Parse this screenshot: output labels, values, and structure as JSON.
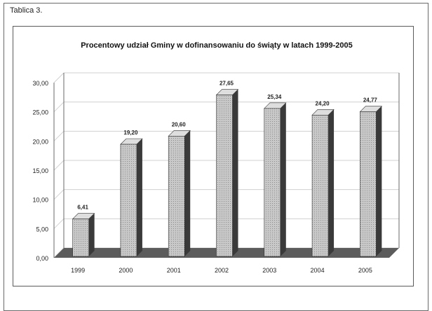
{
  "caption": "Tablica 3.",
  "colors": {
    "bar_front": "#c8c8c8",
    "bar_side": "#3a3a3a",
    "bar_top": "#dedede",
    "floor": "#5c5c5c",
    "grid": "#d0d0d0",
    "axis": "#6a6a6a"
  },
  "chart_data": {
    "type": "bar",
    "title": "Procentowy udział Gminy w dofinansowaniu do świąty w latach 1999-2005",
    "categories": [
      "1999",
      "2000",
      "2001",
      "2002",
      "2003",
      "2004",
      "2005"
    ],
    "values": [
      6.41,
      19.2,
      20.6,
      27.65,
      25.34,
      24.2,
      24.77
    ],
    "value_labels": [
      "6,41",
      "19,20",
      "20,60",
      "27,65",
      "25,34",
      "24,20",
      "24,77"
    ],
    "yticks": [
      "0,00",
      "5,00",
      "10,00",
      "15,00",
      "20,00",
      "25,00",
      "30,00"
    ],
    "ylim": [
      0,
      30
    ],
    "grid": true,
    "legend": "none",
    "style": "3d-column"
  }
}
